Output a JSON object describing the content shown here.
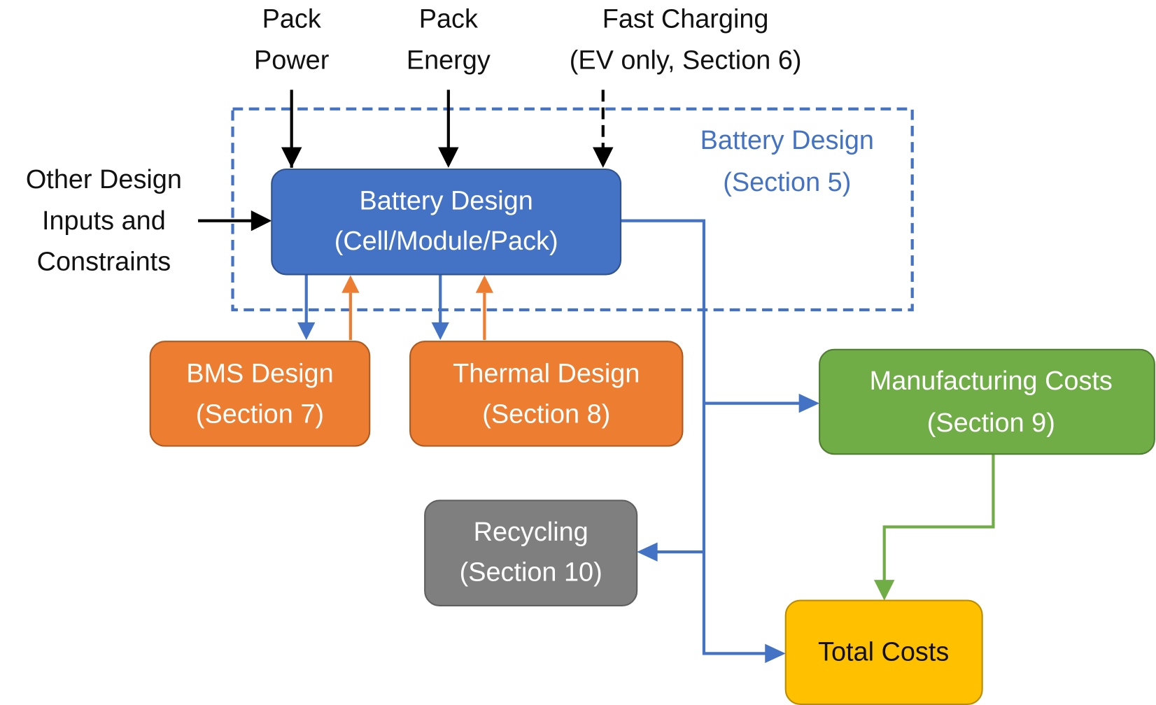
{
  "inputs": {
    "pack_power": [
      "Pack",
      "Power"
    ],
    "pack_energy": [
      "Pack",
      "Energy"
    ],
    "fast_charging": [
      "Fast Charging",
      "(EV only, Section 6)"
    ],
    "other_design": [
      "Other Design",
      "Inputs and",
      "Constraints"
    ]
  },
  "region": {
    "label": [
      "Battery Design",
      "(Section 5)"
    ]
  },
  "nodes": [
    {
      "label": [
        "Battery Design",
        "(Cell/Module/Pack)"
      ]
    },
    {
      "label": [
        "BMS Design",
        "(Section 7)"
      ]
    },
    {
      "label": [
        "Thermal Design",
        "(Section 8)"
      ]
    },
    {
      "label": [
        "Manufacturing Costs",
        "(Section 9)"
      ]
    },
    {
      "label": [
        "Recycling",
        "(Section 10)"
      ]
    },
    {
      "label": [
        "Total Costs"
      ]
    }
  ]
}
